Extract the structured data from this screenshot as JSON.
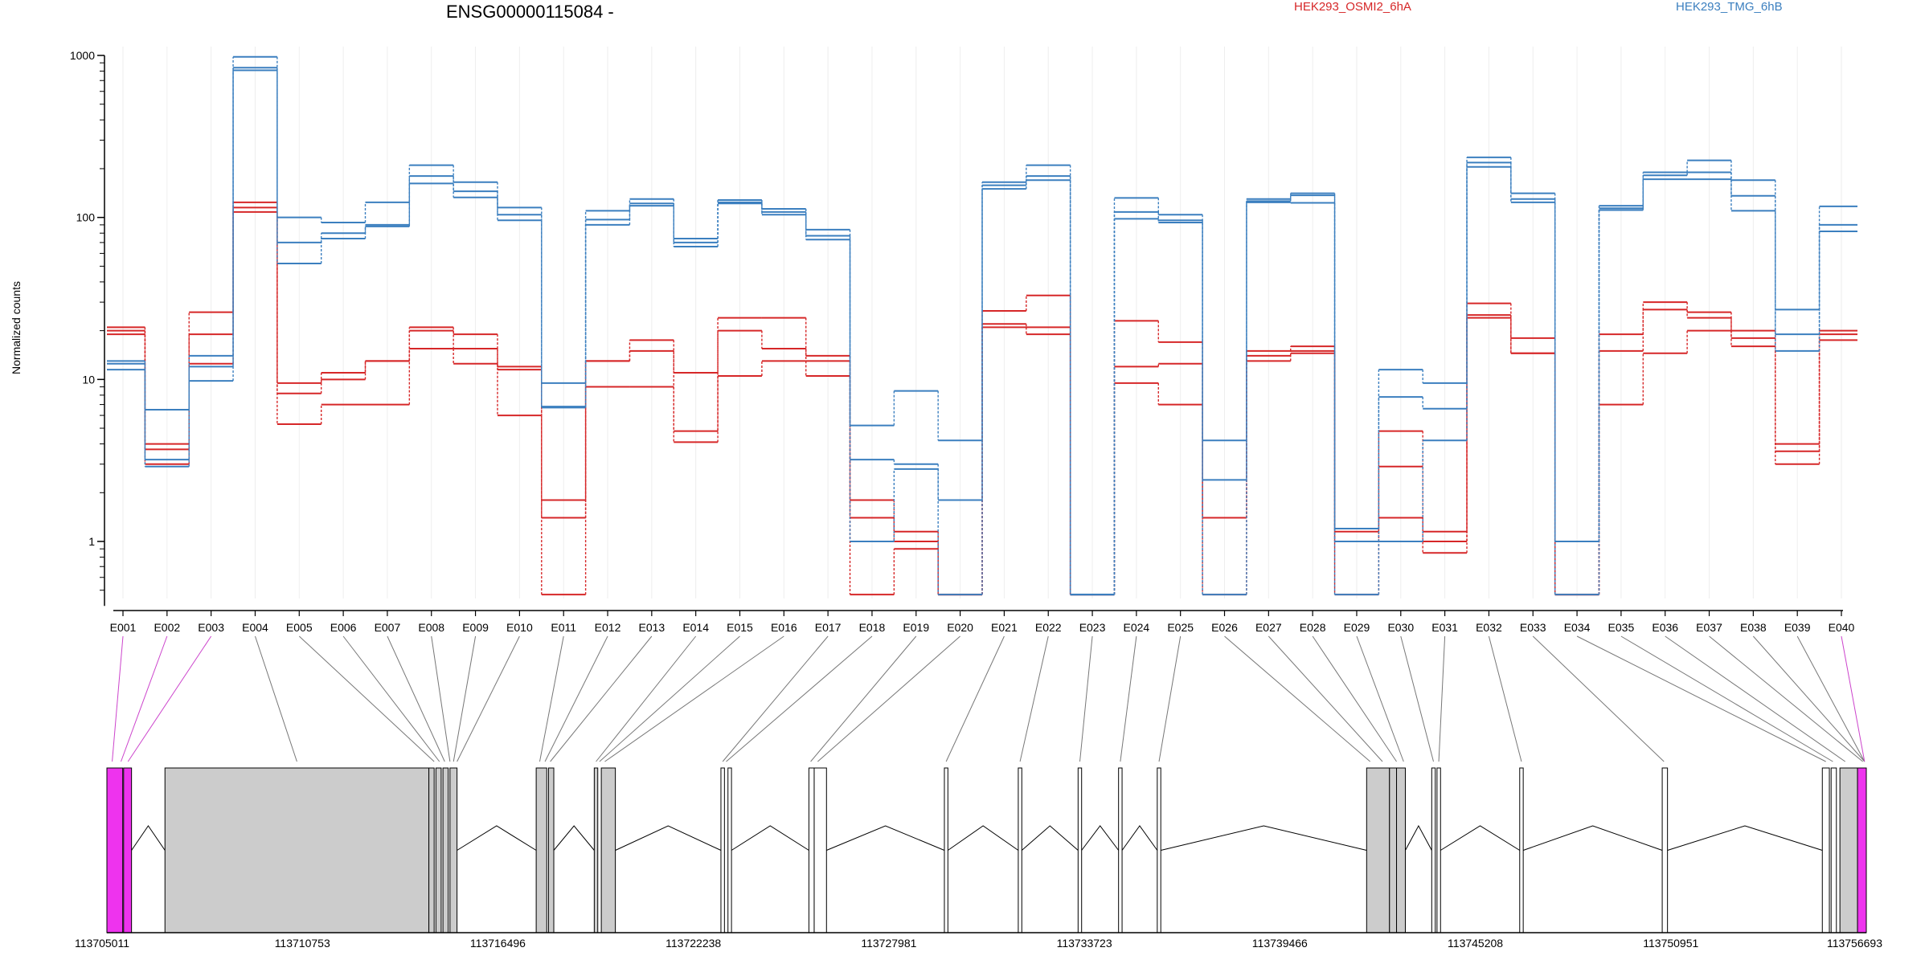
{
  "chart_data": {
    "type": "line",
    "title": "ENSG00000115084 -",
    "ylabel": "Normalized counts",
    "yscale": "log",
    "ylim": [
      0.4,
      1000
    ],
    "yticks": [
      1,
      10,
      100,
      1000
    ],
    "ytick_labels": [
      "1",
      "10",
      "100",
      "1000"
    ],
    "categories": [
      "E001",
      "E002",
      "E003",
      "E004",
      "E005",
      "E006",
      "E007",
      "E008",
      "E009",
      "E010",
      "E011",
      "E012",
      "E013",
      "E014",
      "E015",
      "E016",
      "E017",
      "E018",
      "E019",
      "E020",
      "E021",
      "E022",
      "E023",
      "E024",
      "E025",
      "E026",
      "E027",
      "E028",
      "E029",
      "E030",
      "E031",
      "E032",
      "E033",
      "E034",
      "E035",
      "E036",
      "E037",
      "E038",
      "E039",
      "E040"
    ],
    "legend": [
      "HEK293_OSMI2_6hA",
      "HEK293_TMG_6hB"
    ],
    "legend_position": "top",
    "series": [
      {
        "group": "HEK293_OSMI2_6hA",
        "color": "#d62728",
        "values": [
          21,
          4,
          26,
          124,
          9.5,
          11,
          13,
          21,
          19,
          12,
          1.8,
          13,
          17.5,
          11,
          24,
          24,
          14,
          1.8,
          1.15,
          0.47,
          26.5,
          33,
          0.47,
          23,
          17,
          1.4,
          15,
          16,
          1.15,
          4.8,
          1.15,
          29.5,
          18,
          0.47,
          19,
          30,
          26,
          20,
          4,
          20
        ]
      },
      {
        "group": "HEK293_OSMI2_6hA",
        "color": "#d62728",
        "values": [
          19,
          3.7,
          19,
          115,
          8.2,
          10,
          13,
          20,
          15.5,
          11.5,
          1.4,
          13,
          15,
          4.8,
          20,
          15.5,
          13,
          1.4,
          1.0,
          0.47,
          22,
          21,
          0.47,
          12,
          12.5,
          1.4,
          14,
          15,
          1.0,
          2.9,
          1.0,
          25,
          14.5,
          0.47,
          15,
          27,
          24,
          18,
          3.6,
          19
        ]
      },
      {
        "group": "HEK293_OSMI2_6hA",
        "color": "#d62728",
        "values": [
          20,
          3.0,
          12.5,
          108,
          5.3,
          7,
          7,
          15.5,
          12.5,
          6,
          0.47,
          9,
          9,
          4.1,
          10.5,
          13,
          10.5,
          0.47,
          0.9,
          0.47,
          21,
          19,
          0.47,
          9.5,
          7,
          0.47,
          13,
          14.5,
          0.47,
          1.4,
          0.85,
          24,
          14.5,
          0.47,
          7,
          14.5,
          20,
          16,
          3.0,
          17.5
        ]
      },
      {
        "group": "HEK293_TMG_6hB",
        "color": "#3b7fbf",
        "values": [
          13,
          6.5,
          14,
          980,
          100,
          93,
          124,
          210,
          165,
          115,
          9.5,
          110,
          130,
          74,
          128,
          113,
          84,
          5.2,
          8.5,
          4.2,
          165,
          210,
          0.47,
          132,
          104,
          4.2,
          130,
          141,
          1.2,
          11.5,
          9.5,
          235,
          141,
          1.0,
          118,
          190,
          225,
          170,
          27,
          117
        ]
      },
      {
        "group": "HEK293_TMG_6hB",
        "color": "#3b7fbf",
        "values": [
          12.5,
          3.2,
          12,
          840,
          70,
          80,
          90,
          180,
          145,
          104,
          6.8,
          97,
          122,
          70,
          124,
          108,
          77,
          3.2,
          3.0,
          1.8,
          158,
          180,
          0.47,
          108,
          96,
          2.4,
          126,
          137,
          1.0,
          7.8,
          6.6,
          218,
          130,
          1.0,
          114,
          182,
          190,
          136,
          19,
          90
        ]
      },
      {
        "group": "HEK293_TMG_6hB",
        "color": "#3b7fbf",
        "values": [
          11.5,
          2.9,
          9.8,
          810,
          52,
          74,
          88,
          162,
          133,
          96,
          6.7,
          90,
          118,
          66,
          122,
          104,
          73,
          1.0,
          2.8,
          0.47,
          150,
          170,
          0.47,
          98,
          93,
          0.47,
          124,
          123,
          0.47,
          1.0,
          4.2,
          205,
          124,
          0.47,
          111,
          172,
          172,
          110,
          15,
          82
        ]
      }
    ],
    "genomic_axis": {
      "ticks": [
        "113705011",
        "113710753",
        "113716496",
        "113722238",
        "113727981",
        "113733723",
        "113739466",
        "113745208",
        "113750951",
        "113756693"
      ]
    }
  },
  "gene_model": {
    "exon_fill": "#cccccc",
    "highlight_fill": "#ee33ee",
    "highlighted_bins": [
      "E001",
      "E002",
      "E003",
      "E040"
    ]
  }
}
